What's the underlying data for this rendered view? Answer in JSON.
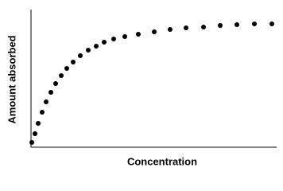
{
  "chart_data": {
    "type": "scatter",
    "x_label": "Concentration",
    "y_label": "Amount absorbed",
    "color": "#000000",
    "x": [
      1,
      5,
      9,
      14,
      19,
      25,
      31,
      38,
      45,
      53,
      62,
      72,
      82,
      92,
      104,
      118,
      135,
      155,
      175,
      195,
      217,
      238,
      259,
      281,
      303
    ],
    "values": [
      6,
      17,
      30,
      44,
      57,
      69,
      80,
      90,
      99,
      107,
      115,
      122,
      127,
      132,
      136,
      139,
      142,
      145,
      148,
      150,
      151,
      153,
      154,
      155,
      155
    ],
    "xlim": [
      0,
      310
    ],
    "ylim": [
      0,
      173
    ]
  }
}
